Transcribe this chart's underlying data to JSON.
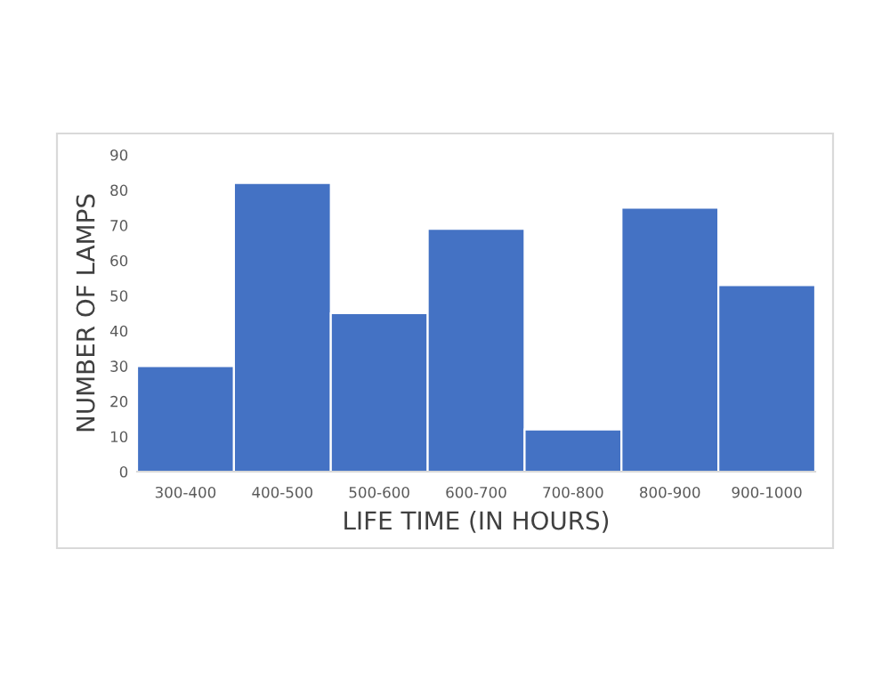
{
  "chart_data": {
    "type": "bar",
    "xlabel": "LIFE TIME (IN HOURS)",
    "ylabel": "NUMBER OF LAMPS",
    "categories": [
      "300-400",
      "400-500",
      "500-600",
      "600-700",
      "700-800",
      "800-900",
      "900-1000"
    ],
    "values": [
      30,
      82,
      45,
      69,
      12,
      75,
      53
    ],
    "color": "#4472c4",
    "ylim": [
      0,
      90
    ],
    "yticks": [
      0,
      10,
      20,
      30,
      40,
      50,
      60,
      70,
      80,
      90
    ],
    "grid": false,
    "legend": false
  }
}
